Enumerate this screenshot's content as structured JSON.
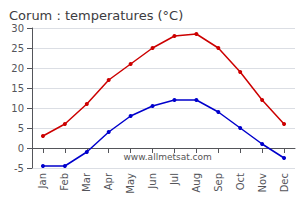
{
  "chart_data": {
    "type": "line",
    "title": "Corum : temperatures (°C)",
    "categories": [
      "Jan",
      "Feb",
      "Mar",
      "Apr",
      "May",
      "Jun",
      "Jul",
      "Aug",
      "Sep",
      "Oct",
      "Nov",
      "Dec"
    ],
    "series": [
      {
        "color": "#cc0000",
        "values": [
          3,
          6,
          11,
          17,
          21,
          25,
          28,
          28.5,
          25,
          19,
          12,
          6
        ]
      },
      {
        "color": "#0000cc",
        "values": [
          -4.5,
          -4.5,
          -1,
          4,
          8,
          10.5,
          12,
          12,
          9,
          5,
          1,
          -2.5
        ]
      }
    ],
    "ylim": [
      -5,
      30
    ],
    "yticks": [
      -5,
      0,
      5,
      10,
      15,
      20,
      25,
      30
    ],
    "grid": true,
    "marker": "circle",
    "annotation": "www.allmetsat.com"
  }
}
